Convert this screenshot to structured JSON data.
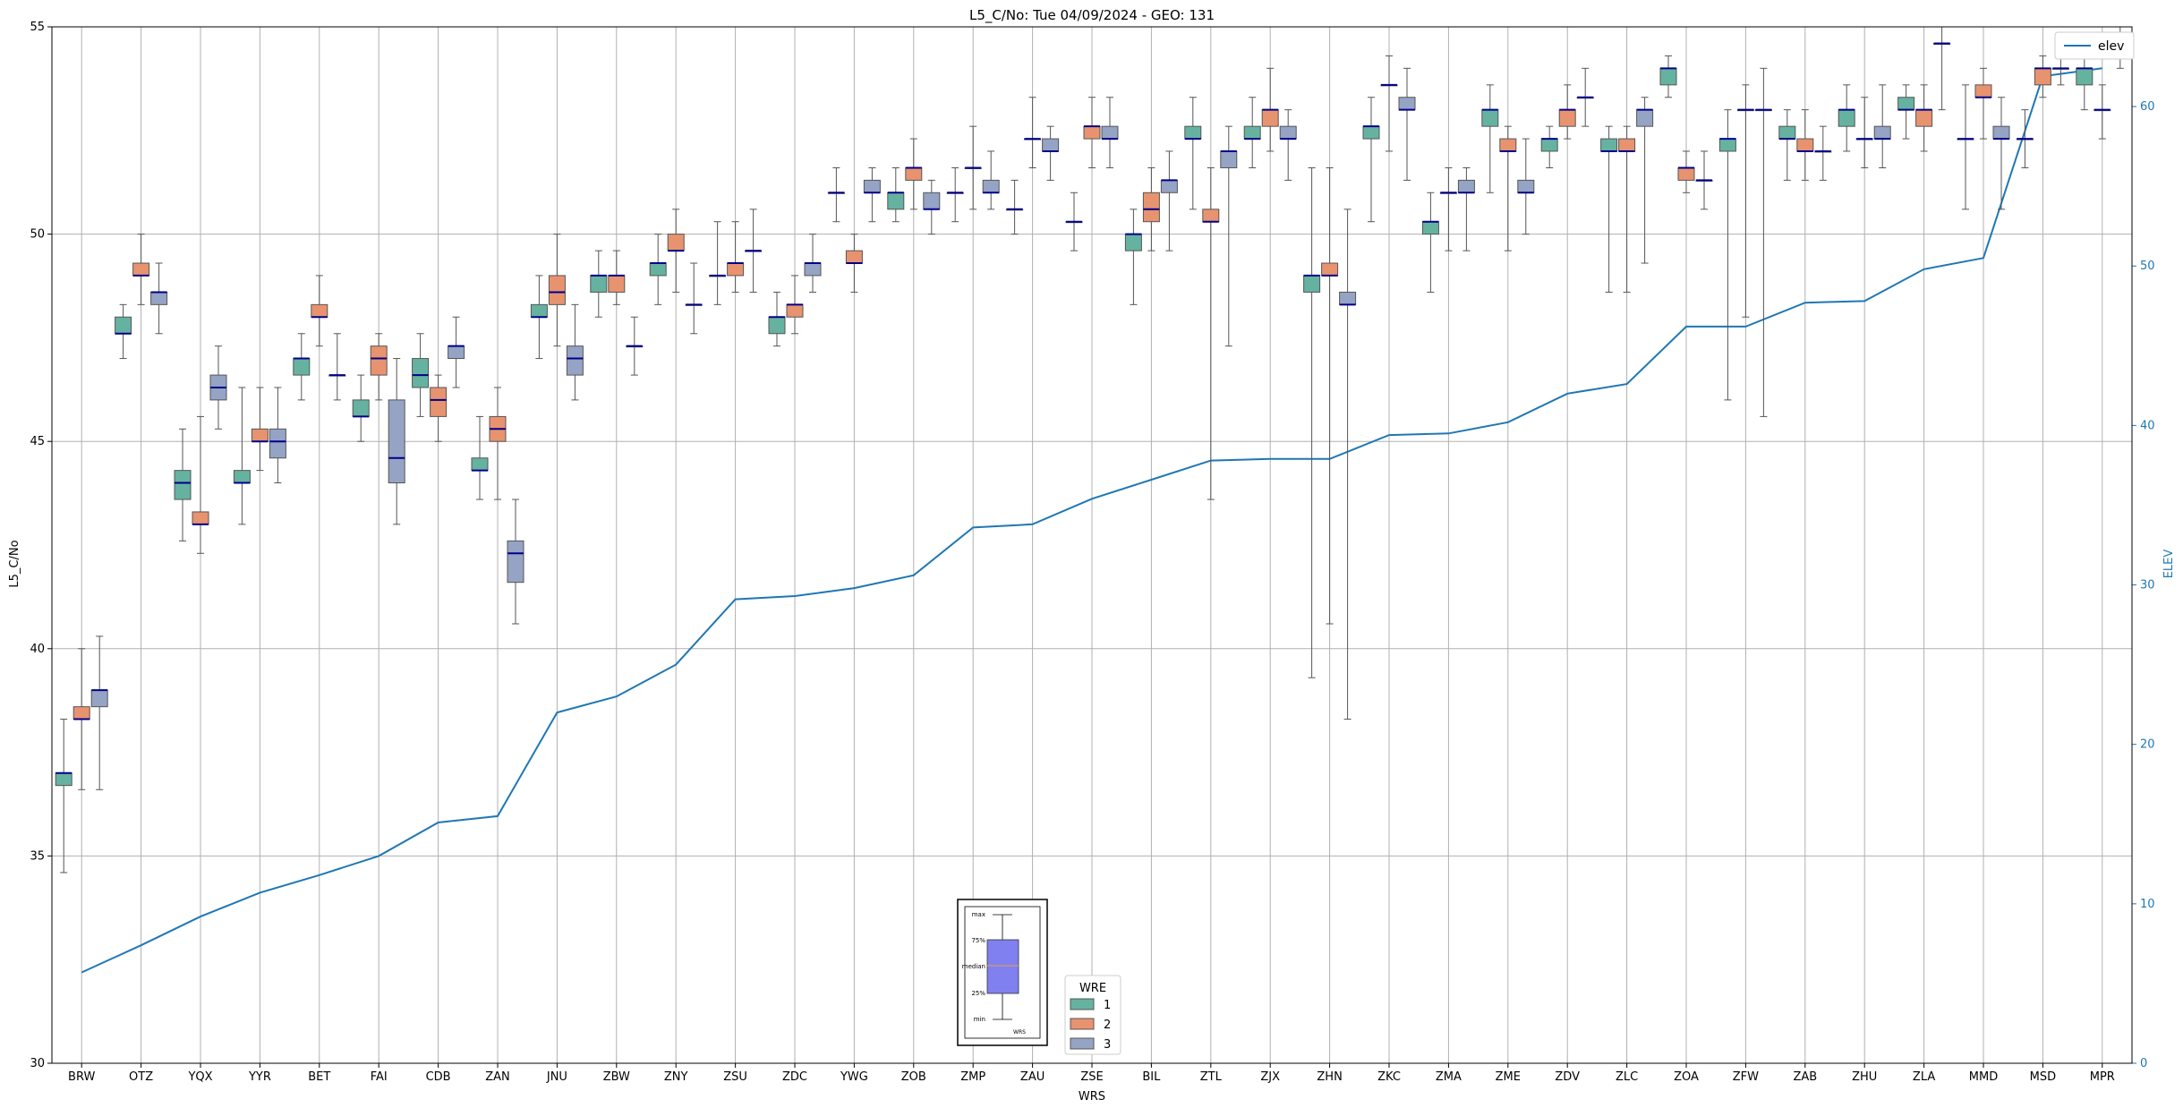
{
  "chart_data": {
    "type": "box",
    "title": "L5_C/No: Tue 04/09/2024 - GEO: 131",
    "xlabel": "WRS",
    "ylabel": "L5_C/No",
    "y2label": "ELEV",
    "ylim": [
      30,
      55
    ],
    "y2lim": [
      0,
      65
    ],
    "yticks": [
      30,
      35,
      40,
      45,
      50,
      55
    ],
    "y2ticks": [
      0,
      10,
      20,
      30,
      40,
      50,
      60
    ],
    "grid": true,
    "legend_elev": {
      "label": "elev",
      "placement": "top-right"
    },
    "legend_wre": {
      "title": "WRE",
      "placement": "bottom-center",
      "entries": [
        "1",
        "2",
        "3"
      ]
    },
    "colors": {
      "wre1": "#66b2a0",
      "wre2": "#e8936f",
      "wre3": "#95a3c4",
      "median": "#00008b",
      "elev": "#1f77b4",
      "whisker": "#555555"
    },
    "categories": [
      "BRW",
      "OTZ",
      "YQX",
      "YYR",
      "BET",
      "FAI",
      "CDB",
      "ZAN",
      "JNU",
      "ZBW",
      "ZNY",
      "ZSU",
      "ZDC",
      "YWG",
      "ZOB",
      "ZMP",
      "ZAU",
      "ZSE",
      "BIL",
      "ZTL",
      "ZJX",
      "ZHN",
      "ZKC",
      "ZMA",
      "ZME",
      "ZDV",
      "ZLC",
      "ZOA",
      "ZFW",
      "ZAB",
      "ZHU",
      "ZLA",
      "MMD",
      "MSD",
      "MPR"
    ],
    "elev": [
      5.7,
      7.4,
      9.2,
      10.7,
      11.8,
      13.0,
      15.1,
      15.5,
      22.0,
      23.0,
      25.0,
      29.1,
      29.3,
      29.8,
      30.6,
      33.6,
      33.8,
      35.4,
      36.6,
      37.8,
      37.9,
      37.9,
      39.4,
      39.5,
      40.2,
      42.0,
      42.6,
      46.2,
      46.2,
      47.7,
      47.8,
      49.8,
      50.5,
      61.9,
      62.4
    ],
    "boxes": [
      [
        [
          34.6,
          36.7,
          37.0,
          37.0,
          38.3
        ],
        [
          36.6,
          38.3,
          38.3,
          38.6,
          40.0
        ],
        [
          36.6,
          38.6,
          39.0,
          39.0,
          40.3
        ]
      ],
      [
        [
          47.0,
          47.6,
          47.6,
          48.0,
          48.3
        ],
        [
          48.3,
          49.0,
          49.0,
          49.3,
          50.0
        ],
        [
          47.6,
          48.3,
          48.6,
          48.6,
          49.3
        ]
      ],
      [
        [
          42.6,
          43.6,
          44.0,
          44.3,
          45.3
        ],
        [
          42.3,
          43.0,
          43.0,
          43.3,
          45.6
        ],
        [
          45.3,
          46.0,
          46.3,
          46.6,
          47.3
        ]
      ],
      [
        [
          43.0,
          44.0,
          44.0,
          44.3,
          46.3
        ],
        [
          44.3,
          45.0,
          45.0,
          45.3,
          46.3
        ],
        [
          44.0,
          44.6,
          45.0,
          45.3,
          46.3
        ]
      ],
      [
        [
          46.0,
          46.6,
          47.0,
          47.0,
          47.6
        ],
        [
          47.3,
          48.0,
          48.0,
          48.3,
          49.0
        ],
        [
          46.0,
          46.6,
          46.6,
          46.6,
          47.6
        ]
      ],
      [
        [
          45.0,
          45.6,
          45.6,
          46.0,
          46.6
        ],
        [
          46.0,
          46.6,
          47.0,
          47.3,
          47.6
        ],
        [
          43.0,
          44.0,
          44.6,
          46.0,
          47.0
        ]
      ],
      [
        [
          45.6,
          46.3,
          46.6,
          47.0,
          47.6
        ],
        [
          45.0,
          45.6,
          46.0,
          46.3,
          46.6
        ],
        [
          46.3,
          47.0,
          47.3,
          47.3,
          48.0
        ]
      ],
      [
        [
          43.6,
          44.3,
          44.3,
          44.6,
          45.6
        ],
        [
          43.6,
          45.0,
          45.3,
          45.6,
          46.3
        ],
        [
          40.6,
          41.6,
          42.3,
          42.6,
          43.6
        ]
      ],
      [
        [
          47.0,
          48.0,
          48.0,
          48.3,
          49.0
        ],
        [
          47.3,
          48.3,
          48.6,
          49.0,
          50.0
        ],
        [
          46.0,
          46.6,
          47.0,
          47.3,
          48.3
        ]
      ],
      [
        [
          48.0,
          48.6,
          49.0,
          49.0,
          49.6
        ],
        [
          48.3,
          48.6,
          49.0,
          49.0,
          49.6
        ],
        [
          46.6,
          47.3,
          47.3,
          47.3,
          48.0
        ]
      ],
      [
        [
          48.3,
          49.0,
          49.3,
          49.3,
          50.0
        ],
        [
          48.6,
          49.6,
          49.6,
          50.0,
          50.6
        ],
        [
          47.6,
          48.3,
          48.3,
          48.3,
          49.3
        ]
      ],
      [
        [
          48.3,
          49.0,
          49.0,
          49.0,
          50.3
        ],
        [
          48.6,
          49.0,
          49.3,
          49.3,
          50.3
        ],
        [
          48.6,
          49.6,
          49.6,
          49.6,
          50.6
        ]
      ],
      [
        [
          47.3,
          47.6,
          48.0,
          48.0,
          48.6
        ],
        [
          47.6,
          48.0,
          48.3,
          48.3,
          49.0
        ],
        [
          48.6,
          49.0,
          49.3,
          49.3,
          50.0
        ]
      ],
      [
        [
          50.3,
          51.0,
          51.0,
          51.0,
          51.6
        ],
        [
          48.6,
          49.3,
          49.3,
          49.6,
          50.0
        ],
        [
          50.3,
          51.0,
          51.0,
          51.3,
          51.6
        ]
      ],
      [
        [
          50.3,
          50.6,
          51.0,
          51.0,
          51.6
        ],
        [
          50.6,
          51.3,
          51.6,
          51.6,
          52.3
        ],
        [
          50.0,
          50.6,
          50.6,
          51.0,
          51.3
        ]
      ],
      [
        [
          50.3,
          51.0,
          51.0,
          51.0,
          51.6
        ],
        [
          50.6,
          51.6,
          51.6,
          51.6,
          52.6
        ],
        [
          50.6,
          51.0,
          51.0,
          51.3,
          52.0
        ]
      ],
      [
        [
          50.0,
          50.6,
          50.6,
          50.6,
          51.3
        ],
        [
          51.6,
          52.3,
          52.3,
          52.3,
          53.3
        ],
        [
          51.3,
          52.0,
          52.0,
          52.3,
          52.6
        ]
      ],
      [
        [
          49.6,
          50.3,
          50.3,
          50.3,
          51.0
        ],
        [
          51.6,
          52.3,
          52.6,
          52.6,
          53.3
        ],
        [
          51.6,
          52.3,
          52.3,
          52.6,
          53.3
        ]
      ],
      [
        [
          48.3,
          49.6,
          50.0,
          50.0,
          50.6
        ],
        [
          49.6,
          50.3,
          50.6,
          51.0,
          51.6
        ],
        [
          49.6,
          51.0,
          51.3,
          51.3,
          52.0
        ]
      ],
      [
        [
          50.6,
          52.3,
          52.3,
          52.6,
          53.3
        ],
        [
          43.6,
          50.3,
          50.3,
          50.6,
          51.6
        ],
        [
          47.3,
          51.6,
          52.0,
          52.0,
          52.6
        ]
      ],
      [
        [
          51.6,
          52.3,
          52.3,
          52.6,
          53.3
        ],
        [
          52.0,
          52.6,
          53.0,
          53.0,
          54.0
        ],
        [
          51.3,
          52.3,
          52.3,
          52.6,
          53.0
        ]
      ],
      [
        [
          39.3,
          48.6,
          49.0,
          49.0,
          51.6
        ],
        [
          40.6,
          49.0,
          49.0,
          49.3,
          51.6
        ],
        [
          38.3,
          48.3,
          48.3,
          48.6,
          50.6
        ]
      ],
      [
        [
          50.3,
          52.3,
          52.6,
          52.6,
          53.3
        ],
        [
          52.0,
          53.6,
          53.6,
          53.6,
          54.3
        ],
        [
          51.3,
          53.0,
          53.0,
          53.3,
          54.0
        ]
      ],
      [
        [
          48.6,
          50.0,
          50.3,
          50.3,
          51.0
        ],
        [
          49.6,
          51.0,
          51.0,
          51.0,
          51.6
        ],
        [
          49.6,
          51.0,
          51.0,
          51.3,
          51.6
        ]
      ],
      [
        [
          51.0,
          52.6,
          53.0,
          53.0,
          53.6
        ],
        [
          49.6,
          52.0,
          52.0,
          52.3,
          52.6
        ],
        [
          50.0,
          51.0,
          51.0,
          51.3,
          52.3
        ]
      ],
      [
        [
          51.6,
          52.0,
          52.3,
          52.3,
          52.6
        ],
        [
          52.3,
          52.6,
          53.0,
          53.0,
          53.6
        ],
        [
          52.6,
          53.3,
          53.3,
          53.3,
          54.0
        ]
      ],
      [
        [
          48.6,
          52.0,
          52.0,
          52.3,
          52.6
        ],
        [
          48.6,
          52.0,
          52.0,
          52.3,
          52.6
        ],
        [
          49.3,
          52.6,
          53.0,
          53.0,
          53.3
        ]
      ],
      [
        [
          53.3,
          53.6,
          54.0,
          54.0,
          54.3
        ],
        [
          51.0,
          51.3,
          51.6,
          51.6,
          52.0
        ],
        [
          50.6,
          51.3,
          51.3,
          51.3,
          52.0
        ]
      ],
      [
        [
          46.0,
          52.0,
          52.3,
          52.3,
          53.0
        ],
        [
          48.0,
          53.0,
          53.0,
          53.0,
          53.6
        ],
        [
          45.6,
          53.0,
          53.0,
          53.0,
          54.0
        ]
      ],
      [
        [
          51.3,
          52.3,
          52.3,
          52.6,
          53.0
        ],
        [
          51.3,
          52.0,
          52.0,
          52.3,
          53.0
        ],
        [
          51.3,
          52.0,
          52.0,
          52.0,
          52.6
        ]
      ],
      [
        [
          52.0,
          52.6,
          53.0,
          53.0,
          53.6
        ],
        [
          51.6,
          52.3,
          52.3,
          52.3,
          53.3
        ],
        [
          51.6,
          52.3,
          52.3,
          52.6,
          53.6
        ]
      ],
      [
        [
          52.3,
          53.0,
          53.0,
          53.3,
          53.6
        ],
        [
          52.0,
          52.6,
          53.0,
          53.0,
          53.6
        ],
        [
          53.0,
          54.6,
          54.6,
          54.6,
          55.0
        ]
      ],
      [
        [
          50.6,
          52.3,
          52.3,
          52.3,
          53.6
        ],
        [
          52.3,
          53.3,
          53.3,
          53.6,
          54.0
        ],
        [
          50.6,
          52.3,
          52.3,
          52.6,
          53.3
        ]
      ],
      [
        [
          51.6,
          52.3,
          52.3,
          52.3,
          53.0
        ],
        [
          53.3,
          53.6,
          54.0,
          54.0,
          54.3
        ],
        [
          53.6,
          54.0,
          54.0,
          54.0,
          54.6
        ]
      ],
      [
        [
          53.0,
          53.6,
          54.0,
          54.0,
          54.3
        ],
        [
          52.3,
          53.0,
          53.0,
          53.0,
          53.6
        ],
        [
          54.0,
          54.3,
          54.3,
          54.6,
          55.0
        ]
      ]
    ]
  },
  "inset": {
    "labels": [
      "max",
      "75%",
      "median",
      "25%",
      "min"
    ],
    "xlabel": "WRS"
  }
}
